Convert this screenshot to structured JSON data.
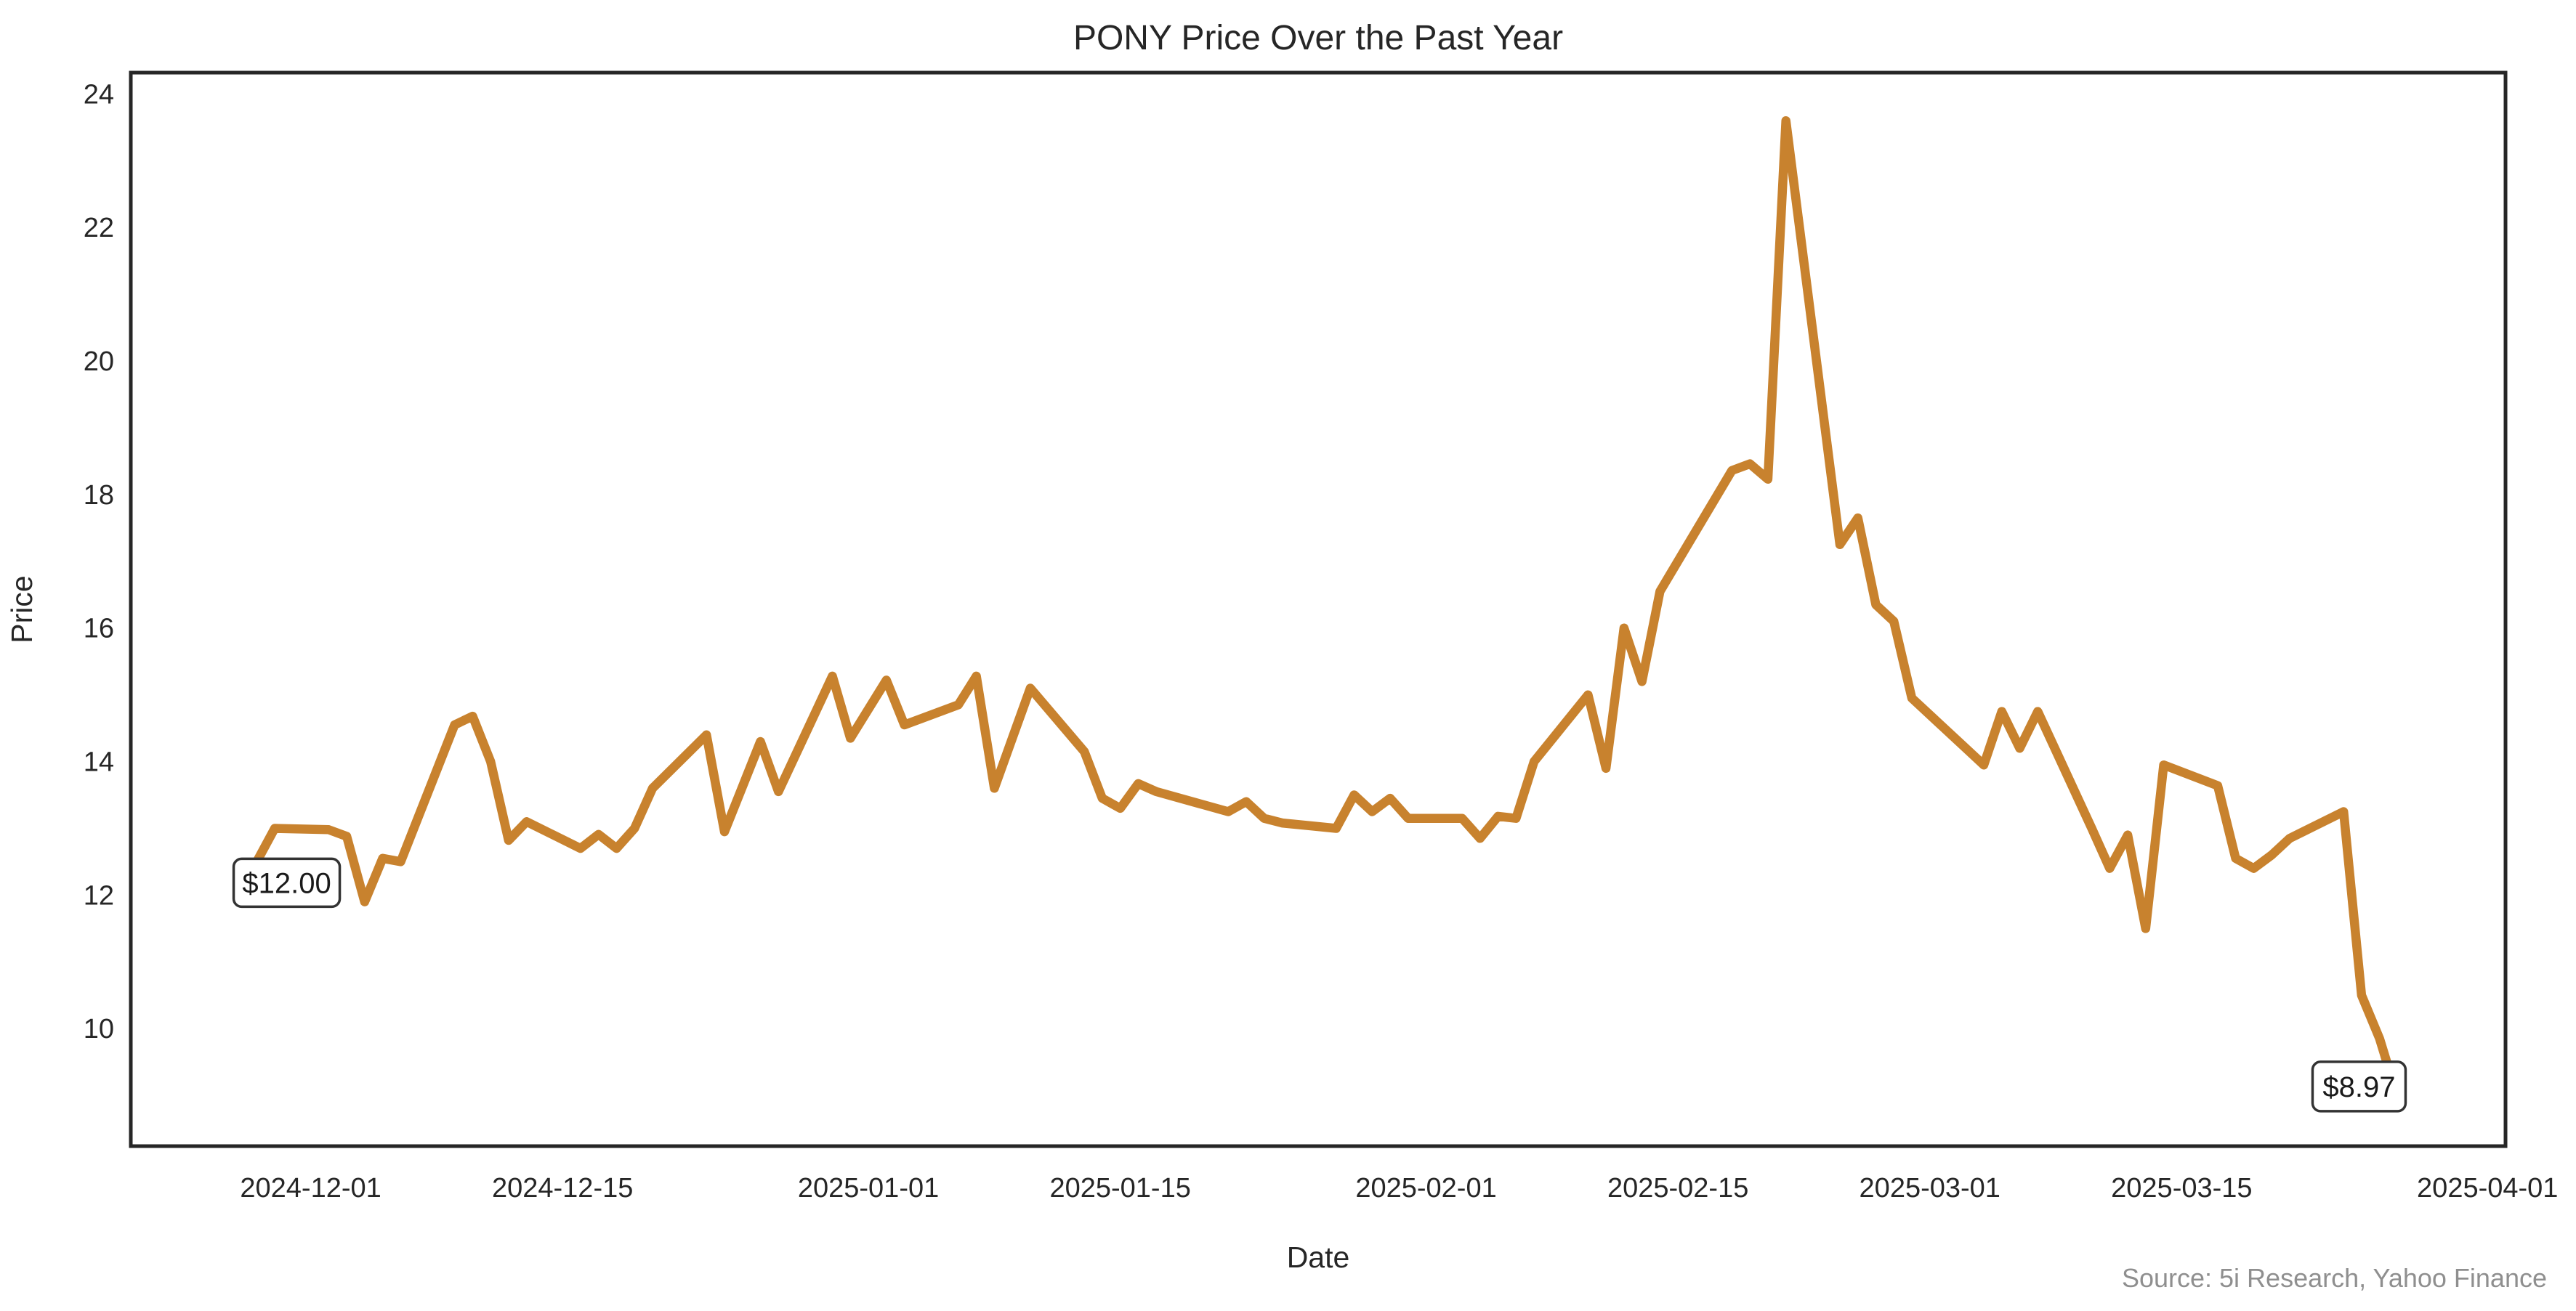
{
  "title": "PONY Price Over the Past Year",
  "xlabel": "Date",
  "ylabel": "Price",
  "source": "Source: 5i Research, Yahoo Finance",
  "annotations": {
    "first_point_label": "$12.00",
    "last_point_label": "$8.97"
  },
  "colors": {
    "line": "#C8822E",
    "spine": "#262626",
    "text": "#262626",
    "source_text": "#8f8f8f",
    "annotation_border": "#333333",
    "background": "#ffffff"
  },
  "chart_data": {
    "type": "line",
    "title": "PONY Price Over the Past Year",
    "xlabel": "Date",
    "ylabel": "Price",
    "grid": false,
    "legend": "none",
    "ylim": [
      8.24,
      24.32
    ],
    "xlim": [
      "2024-11-21",
      "2025-04-02"
    ],
    "y_ticks": [
      10,
      12,
      14,
      16,
      18,
      20,
      22,
      24
    ],
    "x_ticks": [
      "2024-12-01",
      "2024-12-15",
      "2025-01-01",
      "2025-01-15",
      "2025-02-01",
      "2025-02-15",
      "2025-03-01",
      "2025-03-15",
      "2025-04-01"
    ],
    "series": [
      {
        "name": "PONY",
        "color": "#C8822E",
        "dates": [
          "2024-11-27",
          "2024-11-29",
          "2024-12-02",
          "2024-12-03",
          "2024-12-04",
          "2024-12-05",
          "2024-12-06",
          "2024-12-09",
          "2024-12-10",
          "2024-12-11",
          "2024-12-12",
          "2024-12-13",
          "2024-12-16",
          "2024-12-17",
          "2024-12-18",
          "2024-12-19",
          "2024-12-20",
          "2024-12-23",
          "2024-12-24",
          "2024-12-26",
          "2024-12-27",
          "2024-12-30",
          "2024-12-31",
          "2025-01-02",
          "2025-01-03",
          "2025-01-06",
          "2025-01-07",
          "2025-01-08",
          "2025-01-09",
          "2025-01-10",
          "2025-01-13",
          "2025-01-14",
          "2025-01-15",
          "2025-01-16",
          "2025-01-17",
          "2025-01-21",
          "2025-01-22",
          "2025-01-23",
          "2025-01-24",
          "2025-01-27",
          "2025-01-28",
          "2025-01-29",
          "2025-01-30",
          "2025-01-31",
          "2025-02-03",
          "2025-02-04",
          "2025-02-05",
          "2025-02-06",
          "2025-02-07",
          "2025-02-10",
          "2025-02-11",
          "2025-02-12",
          "2025-02-13",
          "2025-02-14",
          "2025-02-18",
          "2025-02-19",
          "2025-02-20",
          "2025-02-21",
          "2025-02-24",
          "2025-02-25",
          "2025-02-26",
          "2025-02-27",
          "2025-02-28",
          "2025-03-03",
          "2025-03-04",
          "2025-03-05",
          "2025-03-06",
          "2025-03-07",
          "2025-03-10",
          "2025-03-11",
          "2025-03-12",
          "2025-03-13",
          "2025-03-14",
          "2025-03-17",
          "2025-03-18",
          "2025-03-19",
          "2025-03-20",
          "2025-03-21",
          "2025-03-24",
          "2025-03-25",
          "2025-03-26",
          "2025-03-27"
        ],
        "values": [
          12.0,
          13.0,
          12.98,
          12.88,
          11.9,
          12.55,
          12.5,
          14.55,
          14.68,
          14.0,
          12.82,
          13.1,
          12.7,
          12.91,
          12.7,
          13.0,
          13.6,
          14.4,
          12.95,
          14.3,
          13.55,
          15.28,
          14.35,
          15.22,
          14.55,
          14.85,
          15.28,
          13.6,
          14.35,
          15.1,
          14.15,
          13.45,
          13.3,
          13.67,
          13.55,
          13.25,
          13.4,
          13.15,
          13.08,
          13.0,
          13.5,
          13.25,
          13.45,
          13.15,
          13.15,
          12.85,
          13.18,
          13.15,
          14.0,
          15.0,
          13.9,
          16.0,
          15.2,
          16.55,
          18.36,
          18.46,
          18.23,
          23.6,
          17.25,
          17.65,
          16.35,
          16.1,
          14.95,
          14.2,
          13.95,
          14.75,
          14.2,
          14.75,
          13.0,
          12.4,
          12.9,
          11.5,
          13.95,
          13.64,
          12.55,
          12.4,
          12.6,
          12.85,
          13.25,
          10.5,
          9.85,
          8.97
        ],
        "first_point": {
          "date": "2024-11-27",
          "value": 12.0,
          "label": "$12.00"
        },
        "last_point": {
          "date": "2025-03-27",
          "value": 8.97,
          "label": "$8.97"
        }
      }
    ]
  }
}
